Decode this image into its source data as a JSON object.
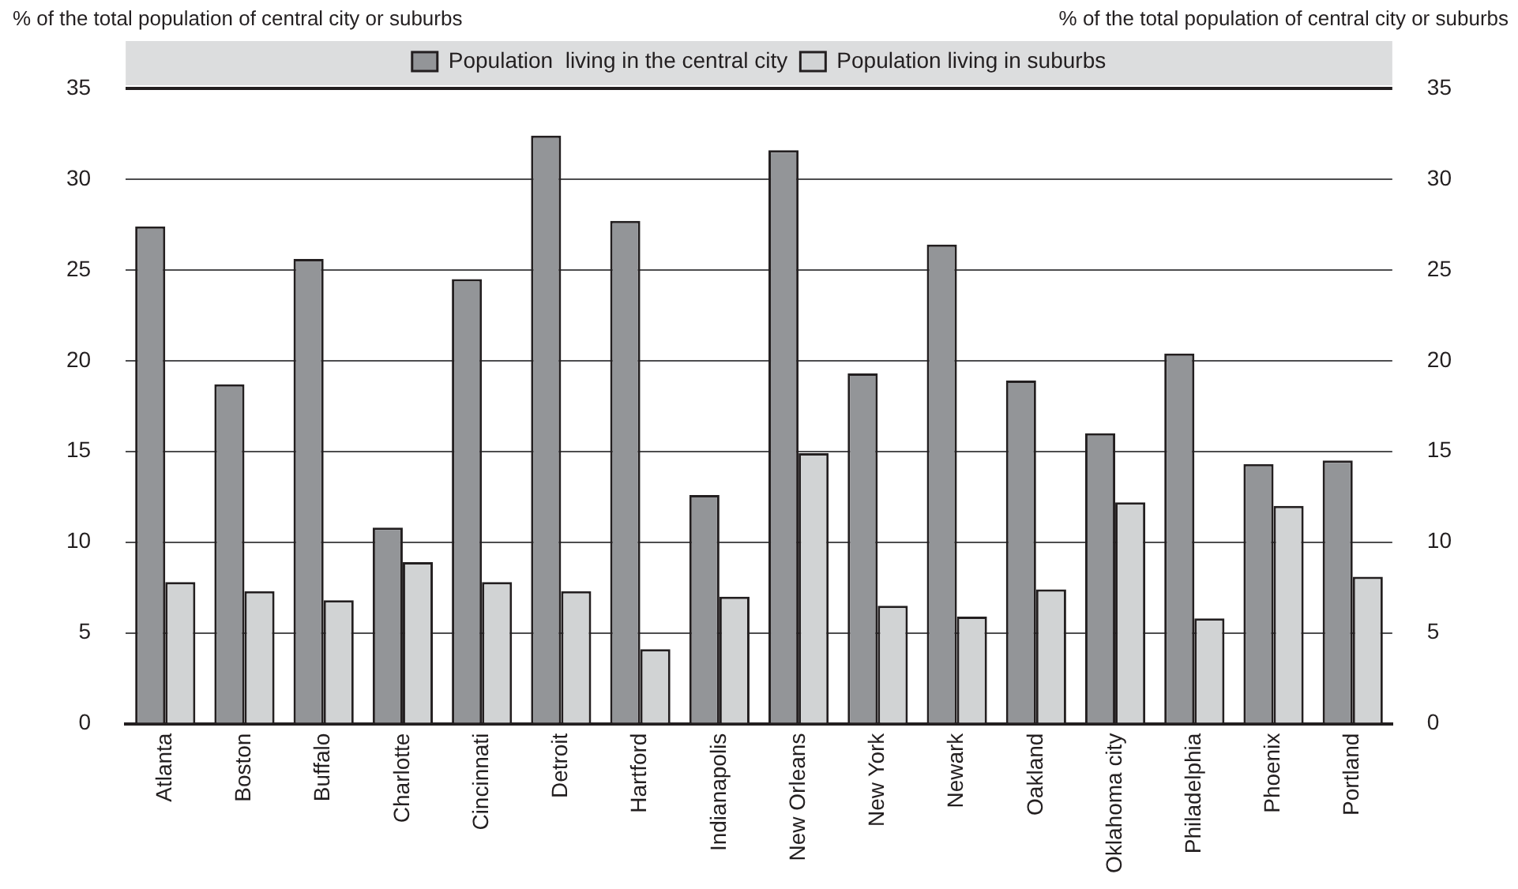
{
  "chart_data": {
    "type": "bar",
    "ylabel": "% of the total population of central city or suburbs",
    "y2label": "% of the total population of central city or suburbs",
    "categories": [
      "Atlanta",
      "Boston",
      "Buffalo",
      "Charlotte",
      "Cincinnati",
      "Detroit",
      "Hartford",
      "Indianapolis",
      "New Orleans",
      "New York",
      "Newark",
      "Oakland",
      "Oklahoma city",
      "Philadelphia",
      "Phoenix",
      "Portland"
    ],
    "series": [
      {
        "name": "Population  living in the central city",
        "color": "#939598",
        "values": [
          27.4,
          18.7,
          25.6,
          10.8,
          24.5,
          32.4,
          27.7,
          12.6,
          31.6,
          19.3,
          26.4,
          18.9,
          16.0,
          20.4,
          14.3,
          14.5
        ]
      },
      {
        "name": "Population living in suburbs",
        "color": "#d1d3d4",
        "values": [
          7.8,
          7.3,
          6.8,
          8.9,
          7.8,
          7.3,
          4.1,
          7.0,
          14.9,
          6.5,
          5.9,
          7.4,
          12.2,
          5.8,
          12.0,
          8.1
        ]
      }
    ],
    "ylim": [
      0,
      35
    ],
    "yticks": [
      0,
      5,
      10,
      15,
      20,
      25,
      30,
      35
    ],
    "y2lim": [
      0,
      35
    ],
    "y2ticks": [
      0,
      5,
      10,
      15,
      20,
      25,
      30,
      35
    ],
    "grid": "y",
    "legend": "top"
  }
}
